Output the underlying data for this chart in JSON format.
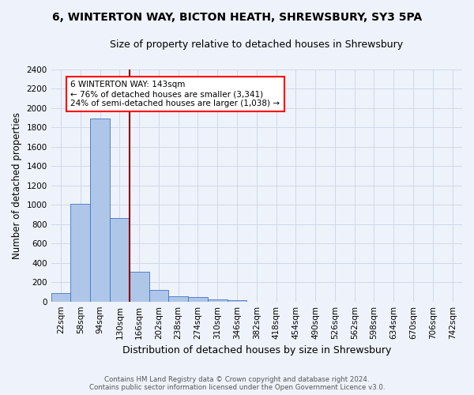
{
  "title": "6, WINTERTON WAY, BICTON HEATH, SHREWSBURY, SY3 5PA",
  "subtitle": "Size of property relative to detached houses in Shrewsbury",
  "xlabel": "Distribution of detached houses by size in Shrewsbury",
  "ylabel": "Number of detached properties",
  "footer_line1": "Contains HM Land Registry data © Crown copyright and database right 2024.",
  "footer_line2": "Contains public sector information licensed under the Open Government Licence v3.0.",
  "bin_labels": [
    "22sqm",
    "58sqm",
    "94sqm",
    "130sqm",
    "166sqm",
    "202sqm",
    "238sqm",
    "274sqm",
    "310sqm",
    "346sqm",
    "382sqm",
    "418sqm",
    "454sqm",
    "490sqm",
    "526sqm",
    "562sqm",
    "598sqm",
    "634sqm",
    "670sqm",
    "706sqm",
    "742sqm"
  ],
  "bar_values": [
    90,
    1010,
    1890,
    860,
    310,
    120,
    52,
    45,
    18,
    12,
    0,
    0,
    0,
    0,
    0,
    0,
    0,
    0,
    0,
    0,
    0
  ],
  "bar_color": "#aec6e8",
  "bar_edge_color": "#4472c4",
  "grid_color": "#d0d8e8",
  "bg_color": "#eef3fb",
  "vline_x": 3.5,
  "vline_color": "#8b0000",
  "annotation_text": "6 WINTERTON WAY: 143sqm\n← 76% of detached houses are smaller (3,341)\n24% of semi-detached houses are larger (1,038) →",
  "annotation_box_color": "white",
  "annotation_box_edge": "red",
  "ylim": [
    0,
    2400
  ],
  "yticks": [
    0,
    200,
    400,
    600,
    800,
    1000,
    1200,
    1400,
    1600,
    1800,
    2000,
    2200,
    2400
  ]
}
